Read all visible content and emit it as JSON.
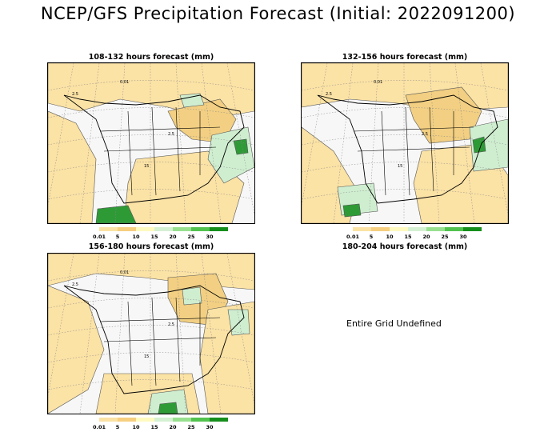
{
  "title": "NCEP/GFS Precipitation Forecast (Initial: 2022091200)",
  "panels": [
    {
      "title": "108-132 hours forecast (mm)"
    },
    {
      "title": "132-156 hours forecast (mm)"
    },
    {
      "title": "156-180 hours forecast (mm)"
    },
    {
      "title": "180-204 hours forecast (mm)",
      "message": "Entire Grid Undefined"
    }
  ],
  "legend": {
    "levels": [
      "0.01",
      "5",
      "10",
      "15",
      "20",
      "25",
      "30"
    ],
    "colors": [
      "#fbe2a5",
      "#f6cf80",
      "#fffac0",
      "#d5f1d3",
      "#98e08f",
      "#52c24e",
      "#168e1d"
    ]
  },
  "colors": {
    "dry": "#f7f7f7",
    "light": "#fbe2a5",
    "moderate": "#f2cf82",
    "wet_light": "#cfeed0",
    "wet_heavy": "#2e9a36"
  },
  "contour_labels": [
    "2.5",
    "0.01",
    "2.5",
    "15"
  ]
}
